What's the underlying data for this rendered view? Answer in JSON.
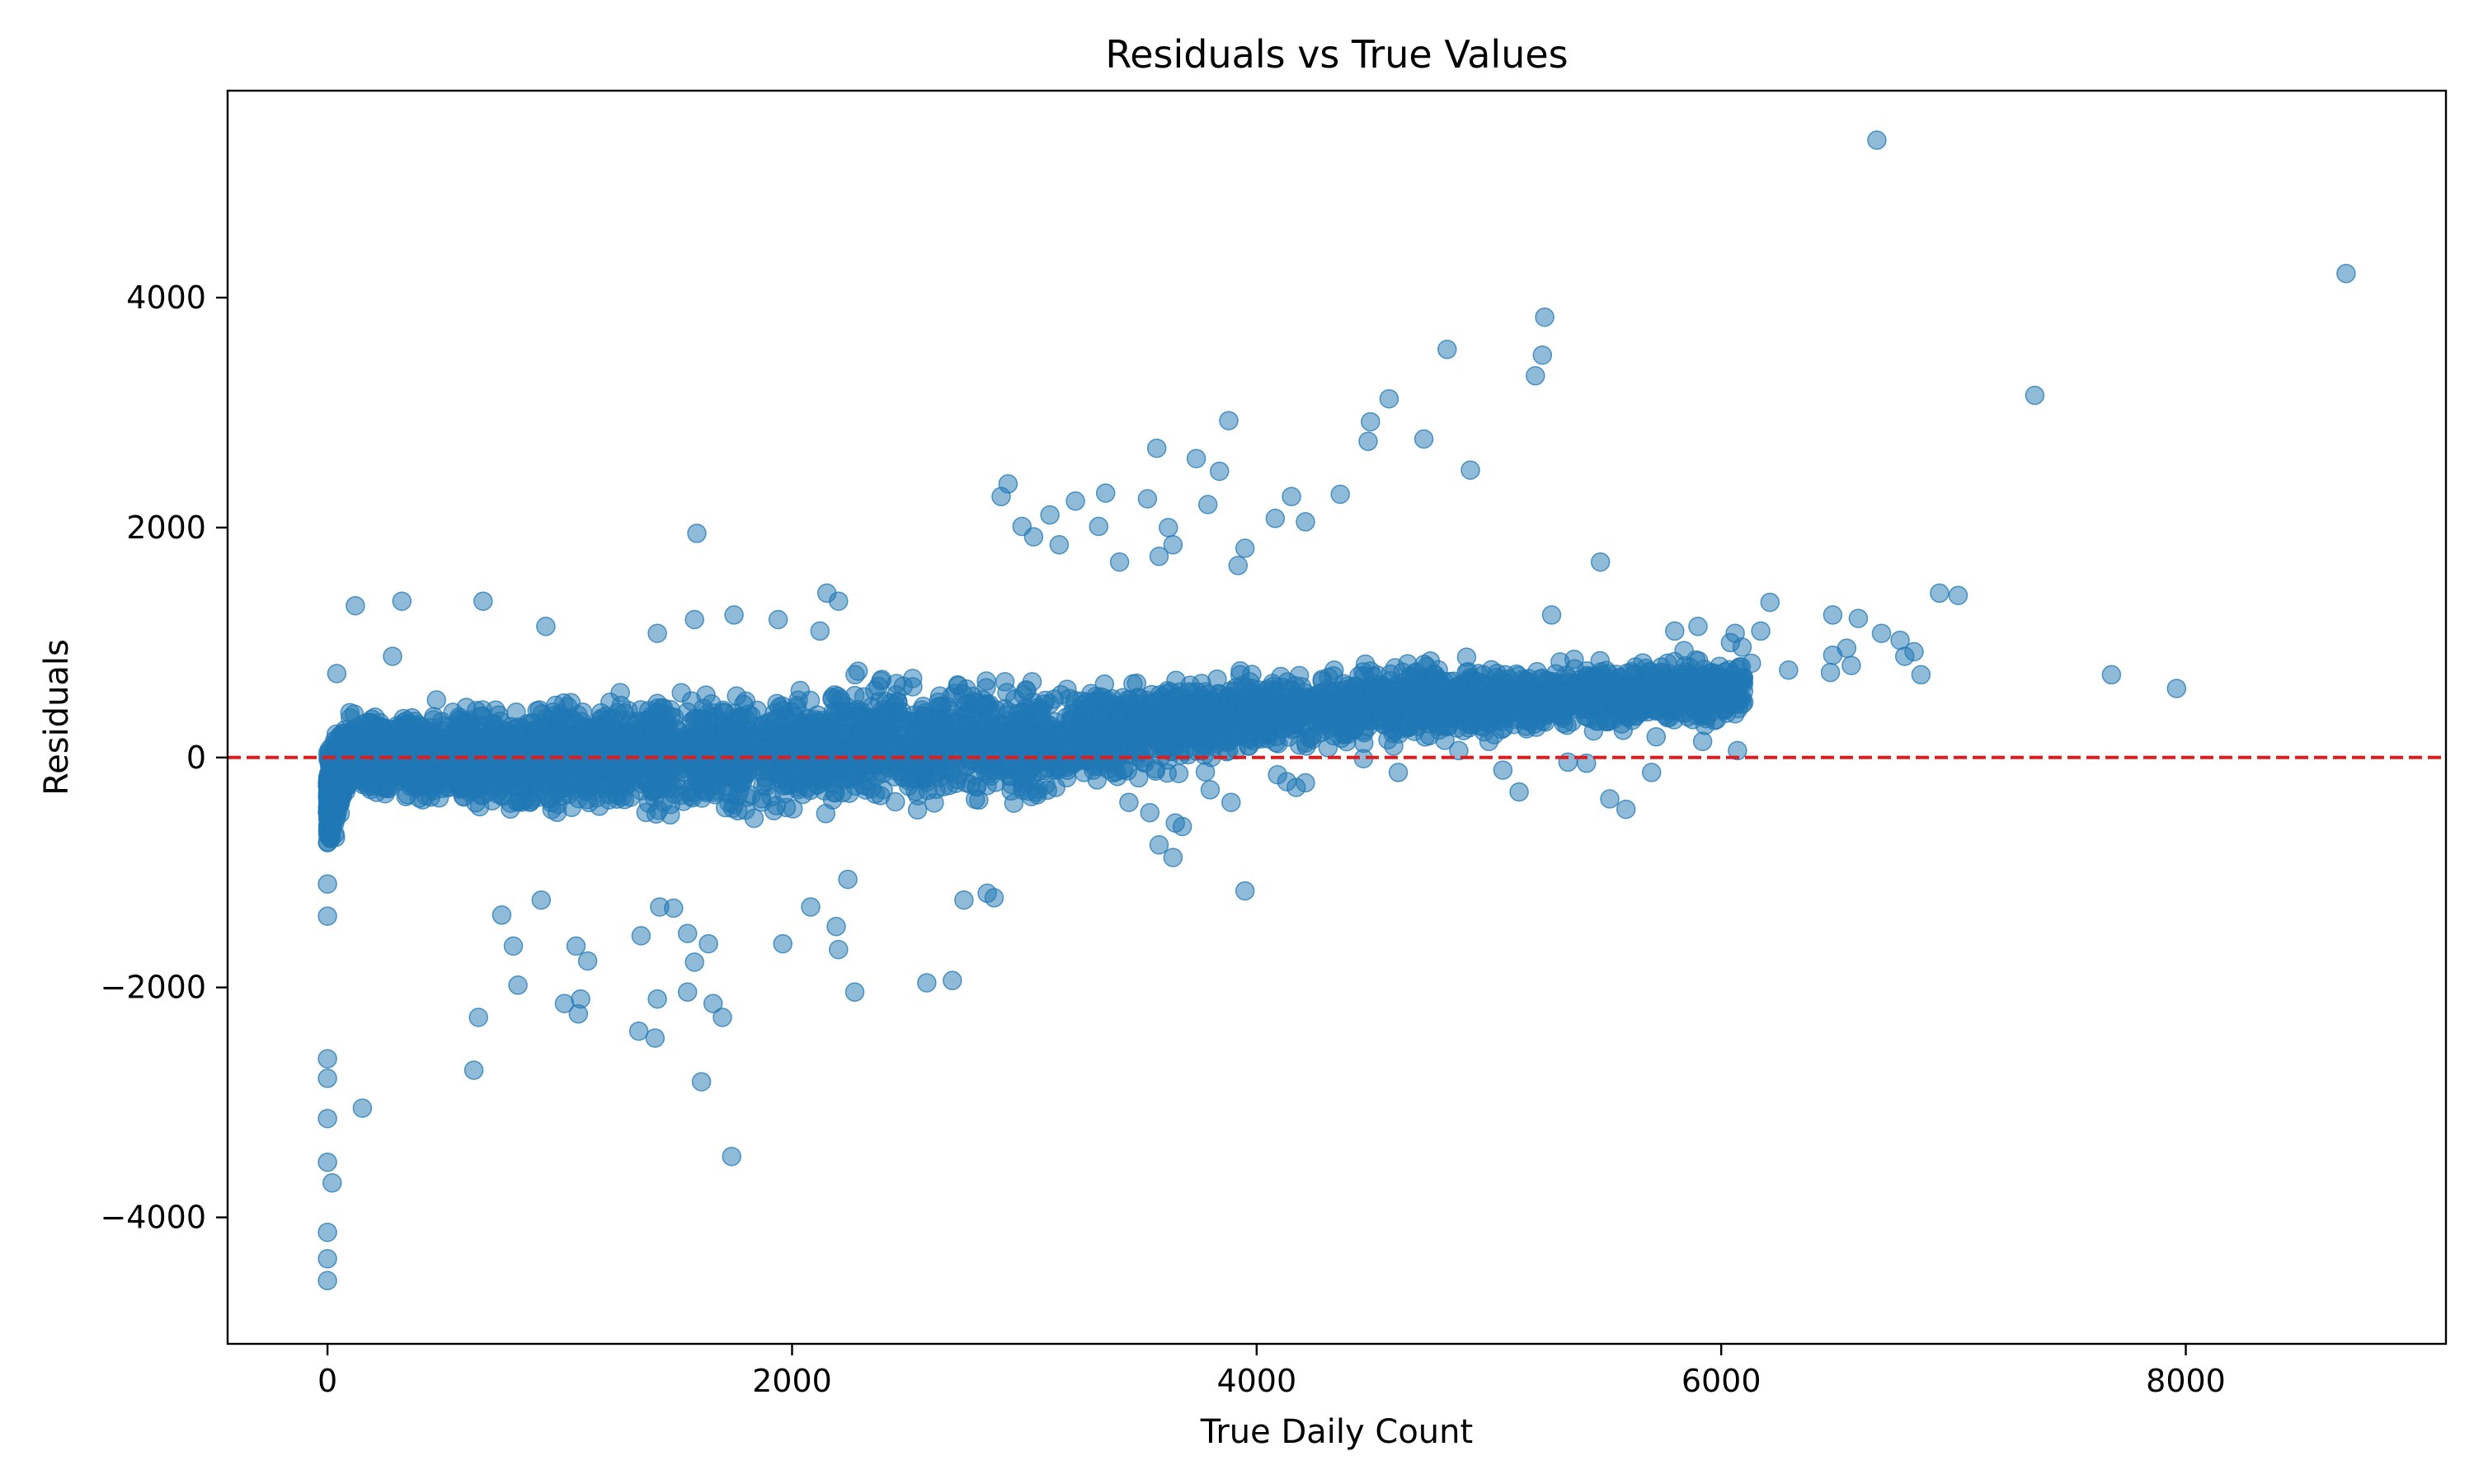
{
  "chart_data": {
    "type": "scatter",
    "title": "Residuals vs True Values",
    "xlabel": "True Daily Count",
    "ylabel": "Residuals",
    "xlim": [
      -430,
      9120
    ],
    "ylim": [
      -5100,
      5800
    ],
    "xticks": [
      0,
      2000,
      4000,
      6000,
      8000
    ],
    "xtick_labels": [
      "0",
      "2000",
      "4000",
      "6000",
      "8000"
    ],
    "yticks": [
      -4000,
      -2000,
      0,
      2000,
      4000
    ],
    "ytick_labels": [
      "−4000",
      "−2000",
      "0",
      "2000",
      "4000"
    ],
    "grid": false,
    "reference_line": {
      "y": 0,
      "style": "dashed",
      "color": "#e31a1c"
    },
    "marker_color": "#1f77b4",
    "marker_alpha": 0.5,
    "series": [
      {
        "points": [
          [
            0,
            -1100
          ],
          [
            0,
            -1380
          ],
          [
            0,
            -2620
          ],
          [
            0,
            -2790
          ],
          [
            0,
            -3140
          ],
          [
            0,
            -3520
          ],
          [
            20,
            -3700
          ],
          [
            0,
            -4130
          ],
          [
            0,
            -4360
          ],
          [
            0,
            -4550
          ],
          [
            150,
            -3050
          ],
          [
            120,
            1320
          ],
          [
            320,
            1360
          ],
          [
            670,
            1360
          ],
          [
            940,
            1140
          ],
          [
            280,
            880
          ],
          [
            40,
            730
          ],
          [
            630,
            -2720
          ],
          [
            650,
            -2260
          ],
          [
            750,
            -1370
          ],
          [
            800,
            -1640
          ],
          [
            820,
            -1980
          ],
          [
            920,
            -1240
          ],
          [
            1020,
            -2140
          ],
          [
            1080,
            -2230
          ],
          [
            1090,
            -2100
          ],
          [
            1070,
            -1640
          ],
          [
            1120,
            -1770
          ],
          [
            1350,
            -1550
          ],
          [
            1340,
            -2380
          ],
          [
            1410,
            -2440
          ],
          [
            1420,
            -2100
          ],
          [
            1430,
            -1300
          ],
          [
            1490,
            -1310
          ],
          [
            1550,
            -2040
          ],
          [
            1550,
            -1530
          ],
          [
            1580,
            -1780
          ],
          [
            1610,
            -2820
          ],
          [
            1660,
            -2140
          ],
          [
            1700,
            -2260
          ],
          [
            1640,
            -1620
          ],
          [
            1740,
            -3470
          ],
          [
            1590,
            1950
          ],
          [
            1580,
            1200
          ],
          [
            1420,
            1080
          ],
          [
            1750,
            1240
          ],
          [
            1940,
            1200
          ],
          [
            2120,
            1100
          ],
          [
            2150,
            1430
          ],
          [
            2200,
            1360
          ],
          [
            2240,
            -1060
          ],
          [
            2200,
            -1670
          ],
          [
            2270,
            -2040
          ],
          [
            2190,
            -1470
          ],
          [
            2080,
            -1300
          ],
          [
            1960,
            -1620
          ],
          [
            2580,
            -1960
          ],
          [
            2690,
            -1940
          ],
          [
            2740,
            -1240
          ],
          [
            2840,
            -1180
          ],
          [
            2870,
            -1220
          ],
          [
            2900,
            2270
          ],
          [
            2930,
            2380
          ],
          [
            2990,
            2010
          ],
          [
            3040,
            1920
          ],
          [
            3110,
            2110
          ],
          [
            3150,
            1850
          ],
          [
            3220,
            2230
          ],
          [
            3350,
            2300
          ],
          [
            3320,
            2010
          ],
          [
            3410,
            1700
          ],
          [
            3530,
            2250
          ],
          [
            3570,
            2690
          ],
          [
            3580,
            1750
          ],
          [
            3620,
            2000
          ],
          [
            3640,
            1850
          ],
          [
            3740,
            2600
          ],
          [
            3790,
            2200
          ],
          [
            3840,
            2490
          ],
          [
            3880,
            2930
          ],
          [
            3920,
            1670
          ],
          [
            3950,
            1820
          ],
          [
            3950,
            -1160
          ],
          [
            3640,
            -870
          ],
          [
            3580,
            -760
          ],
          [
            4080,
            2080
          ],
          [
            4150,
            2270
          ],
          [
            4210,
            2050
          ],
          [
            4360,
            2290
          ],
          [
            4480,
            2750
          ],
          [
            4490,
            2920
          ],
          [
            4570,
            3120
          ],
          [
            4720,
            2770
          ],
          [
            4820,
            3550
          ],
          [
            4920,
            2500
          ],
          [
            5200,
            3320
          ],
          [
            5230,
            3500
          ],
          [
            5240,
            3830
          ],
          [
            5270,
            1240
          ],
          [
            5480,
            1700
          ],
          [
            6670,
            5370
          ],
          [
            8690,
            4210
          ],
          [
            7350,
            3150
          ],
          [
            7680,
            720
          ],
          [
            7960,
            600
          ],
          [
            6940,
            1430
          ],
          [
            7020,
            1410
          ],
          [
            6860,
            720
          ],
          [
            6830,
            920
          ],
          [
            6790,
            880
          ],
          [
            6770,
            1020
          ],
          [
            6690,
            1080
          ],
          [
            6590,
            1210
          ],
          [
            6560,
            800
          ],
          [
            6540,
            950
          ],
          [
            6480,
            1240
          ],
          [
            6470,
            740
          ],
          [
            6480,
            890
          ],
          [
            6290,
            760
          ],
          [
            6210,
            1350
          ],
          [
            6170,
            1100
          ],
          [
            6130,
            820
          ],
          [
            6090,
            960
          ],
          [
            6070,
            60
          ],
          [
            6060,
            1080
          ],
          [
            6050,
            720
          ],
          [
            6040,
            1000
          ],
          [
            6060,
            380
          ],
          [
            5980,
            330
          ],
          [
            5930,
            280
          ],
          [
            5920,
            140
          ],
          [
            5900,
            1140
          ],
          [
            5850,
            700
          ],
          [
            5840,
            930
          ],
          [
            5800,
            1100
          ],
          [
            5720,
            180
          ],
          [
            5700,
            -130
          ],
          [
            5590,
            -450
          ],
          [
            5520,
            -360
          ],
          [
            5420,
            -50
          ],
          [
            5340,
            -40
          ],
          [
            5130,
            -300
          ],
          [
            5060,
            -110
          ],
          [
            5000,
            140
          ],
          [
            4870,
            60
          ],
          [
            4810,
            150
          ],
          [
            4610,
            -130
          ],
          [
            4590,
            100
          ],
          [
            4460,
            -10
          ],
          [
            4210,
            -220
          ],
          [
            4170,
            -260
          ],
          [
            4130,
            -210
          ],
          [
            4090,
            -150
          ],
          [
            3890,
            -390
          ],
          [
            3800,
            -280
          ],
          [
            3680,
            -600
          ],
          [
            3650,
            -570
          ],
          [
            3540,
            -480
          ],
          [
            3450,
            -390
          ]
        ],
        "dense_band": [
          [
            0,
            -900,
            200
          ],
          [
            100,
            -350,
            420
          ],
          [
            500,
            -520,
            500
          ],
          [
            1000,
            -560,
            560
          ],
          [
            1500,
            -580,
            640
          ],
          [
            2000,
            -560,
            720
          ],
          [
            2500,
            -520,
            760
          ],
          [
            3000,
            -460,
            740
          ],
          [
            3500,
            -220,
            740
          ],
          [
            4000,
            -60,
            800
          ],
          [
            4500,
            60,
            860
          ],
          [
            5000,
            140,
            880
          ],
          [
            5500,
            200,
            880
          ],
          [
            6000,
            260,
            900
          ]
        ]
      }
    ]
  }
}
